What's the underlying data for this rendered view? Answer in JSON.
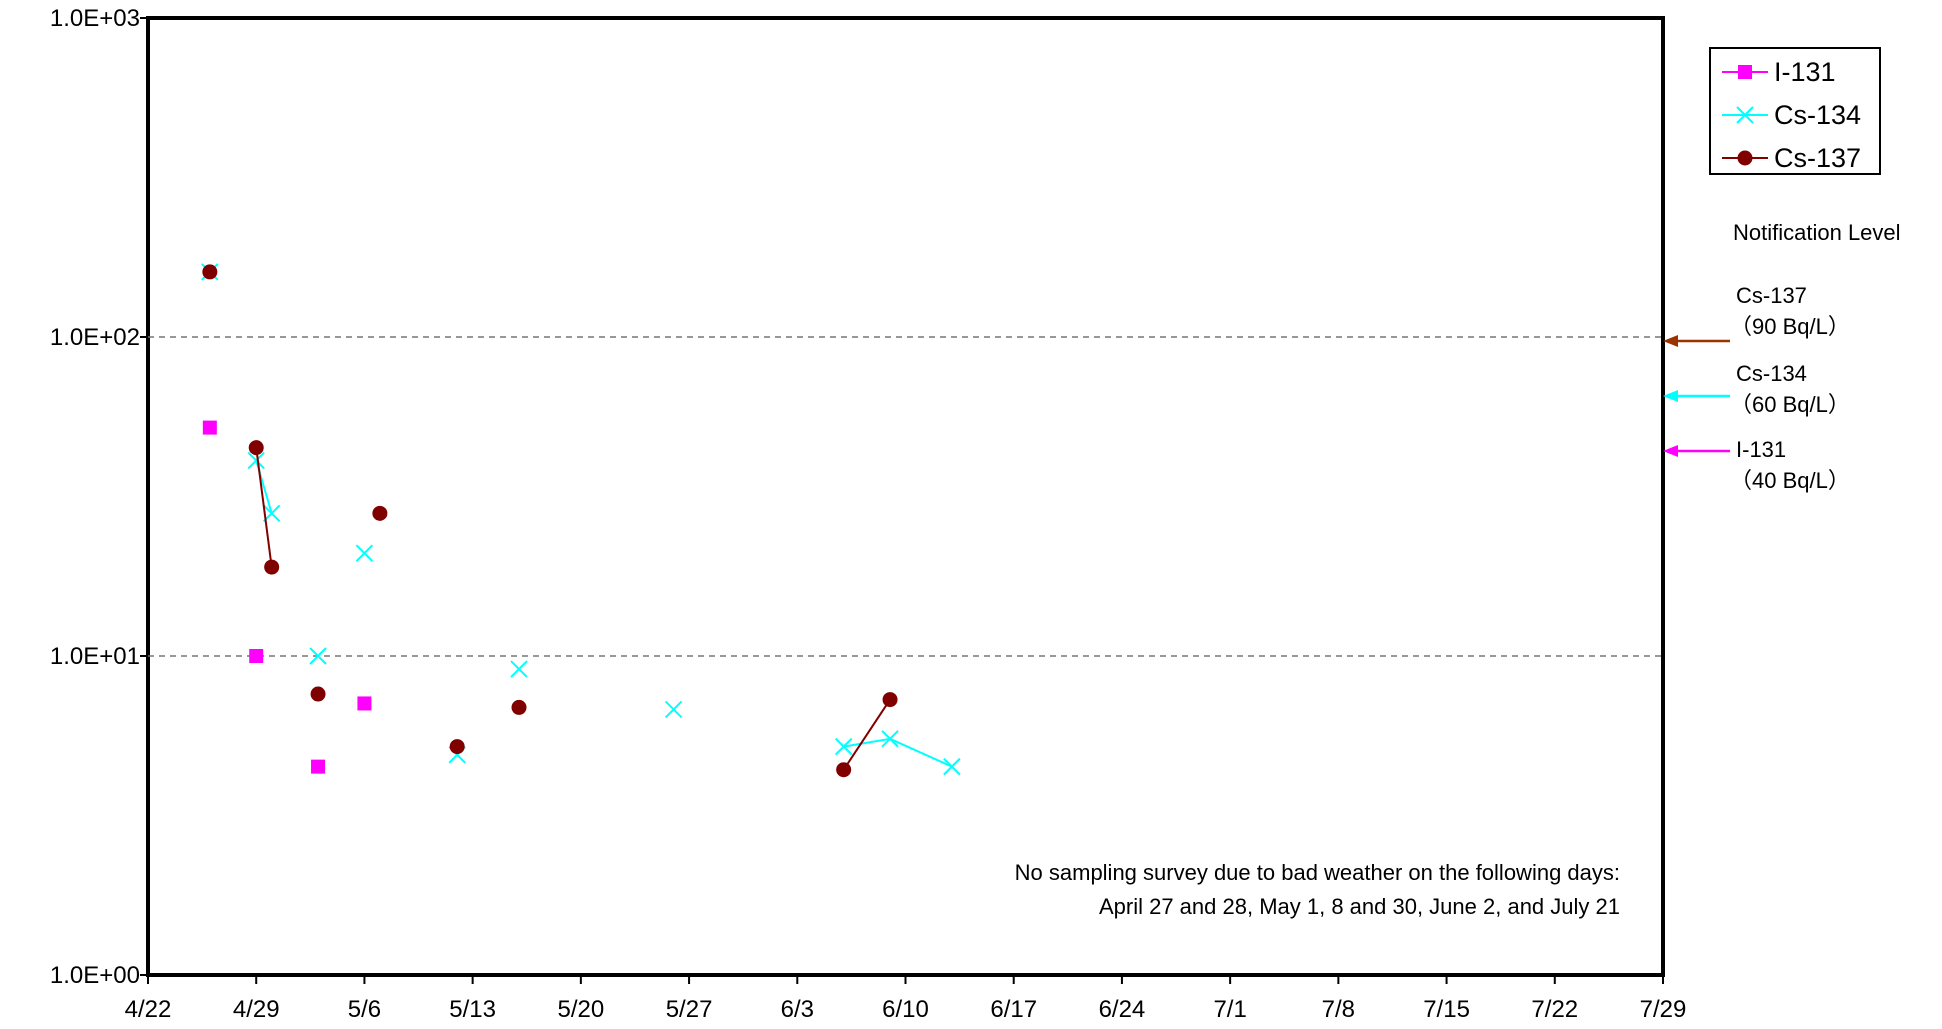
{
  "chart_data": {
    "type": "line",
    "title": "",
    "xlabel": "",
    "ylabel": "",
    "y_scale": "log",
    "ylim": [
      1,
      1000
    ],
    "xlim": [
      "4/22",
      "7/29"
    ],
    "y_tick_labels": [
      "1.0E+00",
      "1.0E+01",
      "1.0E+02",
      "1.0E+03"
    ],
    "x_tick_labels": [
      "4/22",
      "4/29",
      "5/6",
      "5/13",
      "5/20",
      "5/27",
      "6/3",
      "6/10",
      "6/17",
      "6/24",
      "7/1",
      "7/8",
      "7/15",
      "7/22",
      "7/29"
    ],
    "grid": "dashed horizontal lines at 10 and 100",
    "legend_position": "top-right",
    "series": [
      {
        "name": "I-131",
        "color": "#ff00ff",
        "marker": "square",
        "segments": [
          [
            {
              "x": "4/26",
              "y": 52
            }
          ],
          [
            {
              "x": "4/29",
              "y": 10
            }
          ],
          [
            {
              "x": "5/3",
              "y": 4.5
            }
          ],
          [
            {
              "x": "5/6",
              "y": 7.1
            }
          ]
        ]
      },
      {
        "name": "Cs-134",
        "color": "#00ffff",
        "marker": "x",
        "segments": [
          [
            {
              "x": "4/26",
              "y": 160
            }
          ],
          [
            {
              "x": "4/29",
              "y": 41
            },
            {
              "x": "4/30",
              "y": 28
            }
          ],
          [
            {
              "x": "5/3",
              "y": 10
            }
          ],
          [
            {
              "x": "5/6",
              "y": 21
            }
          ],
          [
            {
              "x": "5/12",
              "y": 4.9
            }
          ],
          [
            {
              "x": "5/16",
              "y": 9.1
            }
          ],
          [
            {
              "x": "5/26",
              "y": 6.8
            }
          ],
          [
            {
              "x": "6/6",
              "y": 5.2
            },
            {
              "x": "6/9",
              "y": 5.5
            },
            {
              "x": "6/13",
              "y": 4.5
            }
          ]
        ]
      },
      {
        "name": "Cs-137",
        "color": "#800000",
        "marker": "circle",
        "segments": [
          [
            {
              "x": "4/26",
              "y": 160
            }
          ],
          [
            {
              "x": "4/29",
              "y": 45
            },
            {
              "x": "4/30",
              "y": 19
            }
          ],
          [
            {
              "x": "5/3",
              "y": 7.6
            }
          ],
          [
            {
              "x": "5/7",
              "y": 28
            }
          ],
          [
            {
              "x": "5/12",
              "y": 5.2
            }
          ],
          [
            {
              "x": "5/16",
              "y": 6.9
            }
          ],
          [
            {
              "x": "6/6",
              "y": 4.4
            },
            {
              "x": "6/9",
              "y": 7.3
            }
          ]
        ]
      }
    ],
    "notification_level": {
      "heading": "Notification Level",
      "levels": [
        {
          "name": "Cs-137",
          "value_label": "（90  Bq/L）",
          "value": 90,
          "color": "#993300"
        },
        {
          "name": "Cs-134",
          "value_label": "（60  Bq/L）",
          "value": 60,
          "color": "#00ffff"
        },
        {
          "name": "I-131",
          "value_label": "（40  Bq/L）",
          "value": 40,
          "color": "#ff00ff"
        }
      ]
    },
    "annotation": {
      "line1": "No sampling survey due to bad weather on the following days:",
      "line2": "April 27 and 28,  May 1, 8 and 30, June 2, and July 21"
    }
  }
}
